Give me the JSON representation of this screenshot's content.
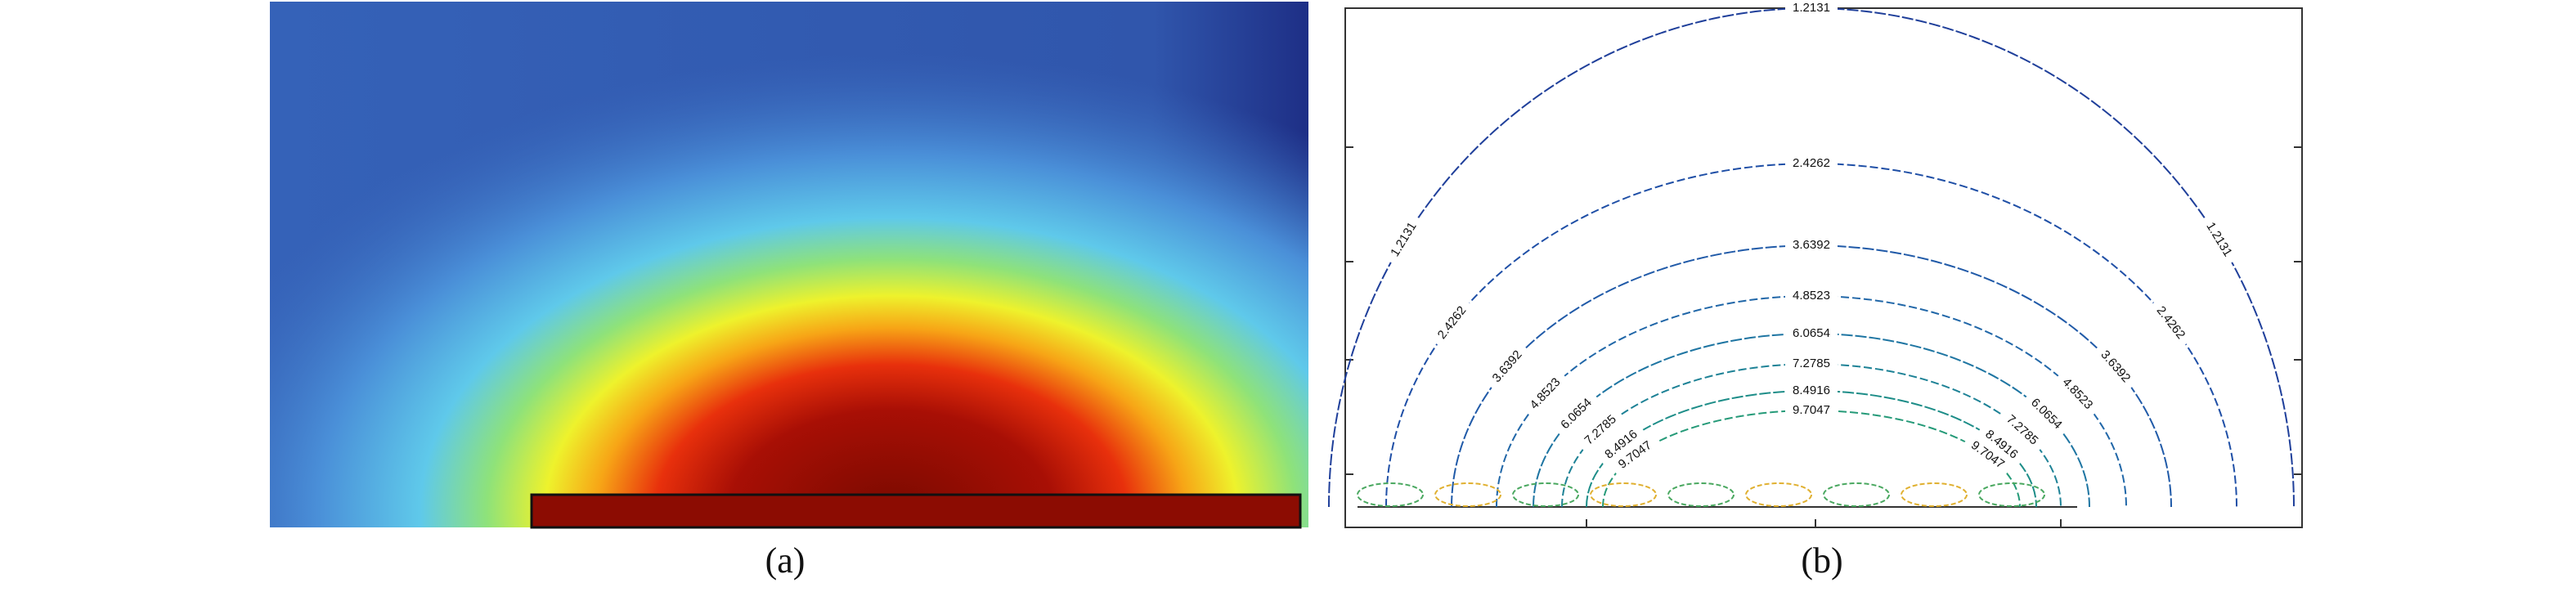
{
  "chart_data": [
    {
      "type": "heatmap",
      "caption": "(a)"
    },
    {
      "type": "contour",
      "caption": "(b)",
      "levels": [
        1.2131,
        2.4262,
        3.6392,
        4.8523,
        6.0654,
        7.2785,
        8.4916,
        9.7047
      ]
    }
  ]
}
